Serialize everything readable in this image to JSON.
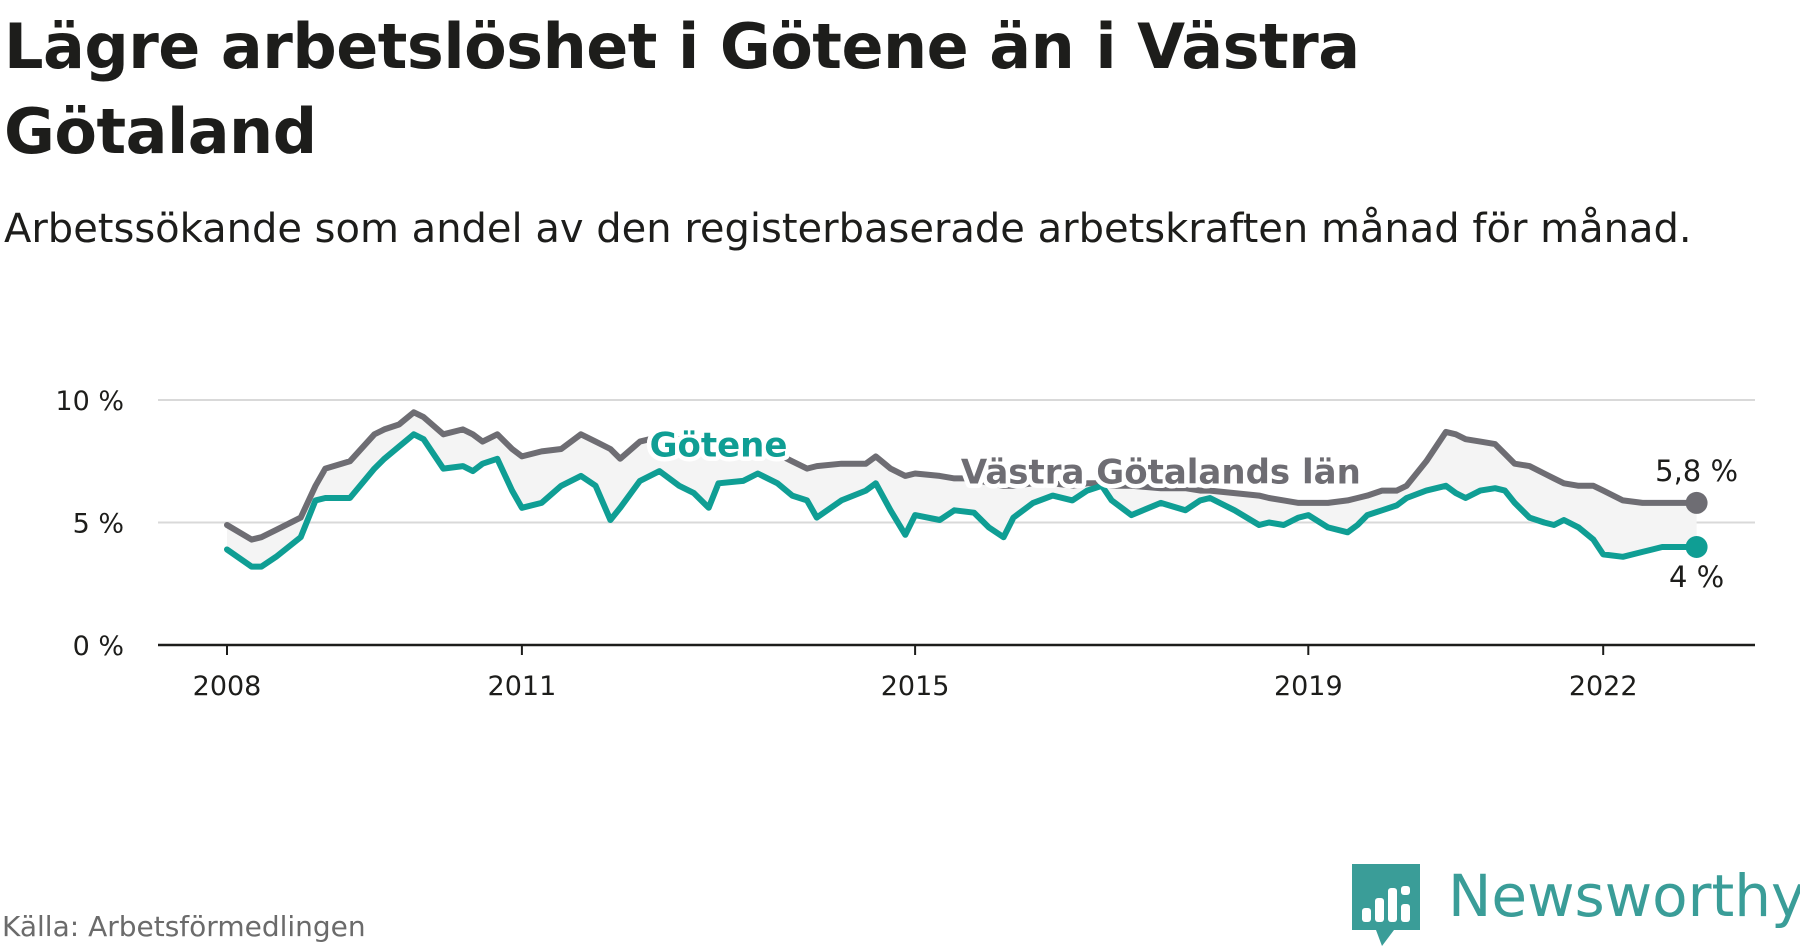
{
  "title": "Lägre arbetslöshet i Götene än i Västra Götaland",
  "subtitle": "Arbetssökande som andel av den registerbaserade arbetskraften månad för månad.",
  "source": "Källa: Arbetsförmedlingen",
  "brand": "Newsworthy",
  "colors": {
    "gotene": "#0f9e94",
    "region": "#6e6d73",
    "band": "#ececec",
    "grid": "#d9d9d9",
    "brand": "#3a9d98"
  },
  "chart_data": {
    "type": "line",
    "title": "Lägre arbetslöshet i Götene än i Västra Götaland",
    "xlabel": "",
    "ylabel": "",
    "xlim": [
      2008.0,
      2023.2
    ],
    "ylim": [
      0,
      10
    ],
    "y_ticks": [
      0,
      5,
      10
    ],
    "y_tick_labels": [
      "0 %",
      "5 %",
      "10 %"
    ],
    "x_ticks": [
      2008,
      2011,
      2015,
      2019,
      2022
    ],
    "x_tick_labels": [
      "2008",
      "2011",
      "2015",
      "2019",
      "2022"
    ],
    "grid": true,
    "legend": "inline",
    "series": [
      {
        "name": "Götene",
        "label": "Götene",
        "color_key": "gotene",
        "end_label": "4 %",
        "x": [
          2008.0,
          2008.25,
          2008.35,
          2008.5,
          2008.75,
          2008.9,
          2009.0,
          2009.25,
          2009.5,
          2009.6,
          2009.75,
          2009.9,
          2010.0,
          2010.2,
          2010.4,
          2010.5,
          2010.6,
          2010.75,
          2010.9,
          2011.0,
          2011.2,
          2011.4,
          2011.6,
          2011.75,
          2011.9,
          2012.0,
          2012.2,
          2012.4,
          2012.6,
          2012.75,
          2012.9,
          2013.0,
          2013.25,
          2013.4,
          2013.6,
          2013.75,
          2013.9,
          2014.0,
          2014.25,
          2014.5,
          2014.6,
          2014.75,
          2014.9,
          2015.0,
          2015.25,
          2015.4,
          2015.6,
          2015.75,
          2015.9,
          2016.0,
          2016.2,
          2016.4,
          2016.6,
          2016.75,
          2016.9,
          2017.0,
          2017.2,
          2017.5,
          2017.75,
          2017.9,
          2018.0,
          2018.25,
          2018.5,
          2018.6,
          2018.75,
          2018.9,
          2019.0,
          2019.2,
          2019.4,
          2019.5,
          2019.6,
          2019.75,
          2019.9,
          2020.0,
          2020.2,
          2020.4,
          2020.5,
          2020.6,
          2020.75,
          2020.9,
          2021.0,
          2021.1,
          2021.25,
          2021.4,
          2021.5,
          2021.6,
          2021.75,
          2021.9,
          2022.0,
          2022.2,
          2022.4,
          2022.6,
          2022.7,
          2022.8,
          2022.95
        ],
        "values": [
          3.9,
          3.2,
          3.2,
          3.6,
          4.4,
          5.9,
          6.0,
          6.0,
          7.2,
          7.6,
          8.1,
          8.6,
          8.4,
          7.2,
          7.3,
          7.1,
          7.4,
          7.6,
          6.3,
          5.6,
          5.8,
          6.5,
          6.9,
          6.5,
          5.1,
          5.6,
          6.7,
          7.1,
          6.5,
          6.2,
          5.6,
          6.6,
          6.7,
          7.0,
          6.6,
          6.1,
          5.9,
          5.2,
          5.9,
          6.3,
          6.6,
          5.5,
          4.5,
          5.3,
          5.1,
          5.5,
          5.4,
          4.8,
          4.4,
          5.2,
          5.8,
          6.1,
          5.9,
          6.3,
          6.5,
          5.9,
          5.3,
          5.8,
          5.5,
          5.9,
          6.0,
          5.5,
          4.9,
          5.0,
          4.9,
          5.2,
          5.3,
          4.8,
          4.6,
          4.9,
          5.3,
          5.5,
          5.7,
          6.0,
          6.3,
          6.5,
          6.2,
          6.0,
          6.3,
          6.4,
          6.3,
          5.8,
          5.2,
          5.0,
          4.9,
          5.1,
          4.8,
          4.3,
          3.7,
          3.6,
          3.8,
          4.0,
          4.0,
          4.0,
          4.0
        ]
      },
      {
        "name": "Västra Götalands län",
        "label": "Västra Götalands län",
        "color_key": "region",
        "end_label": "5,8 %",
        "x": [
          2008.0,
          2008.25,
          2008.35,
          2008.5,
          2008.75,
          2008.9,
          2009.0,
          2009.25,
          2009.5,
          2009.6,
          2009.75,
          2009.9,
          2010.0,
          2010.2,
          2010.4,
          2010.5,
          2010.6,
          2010.75,
          2010.9,
          2011.0,
          2011.2,
          2011.4,
          2011.6,
          2011.75,
          2011.9,
          2012.0,
          2012.2,
          2012.4,
          2012.6,
          2012.75,
          2012.9,
          2013.0,
          2013.25,
          2013.4,
          2013.6,
          2013.75,
          2013.9,
          2014.0,
          2014.25,
          2014.5,
          2014.6,
          2014.75,
          2014.9,
          2015.0,
          2015.25,
          2015.4,
          2015.6,
          2015.75,
          2015.9,
          2016.0,
          2016.2,
          2016.4,
          2016.6,
          2016.75,
          2016.9,
          2017.0,
          2017.2,
          2017.5,
          2017.75,
          2017.9,
          2018.0,
          2018.25,
          2018.5,
          2018.6,
          2018.75,
          2018.9,
          2019.0,
          2019.2,
          2019.4,
          2019.5,
          2019.6,
          2019.75,
          2019.9,
          2020.0,
          2020.2,
          2020.4,
          2020.5,
          2020.6,
          2020.75,
          2020.9,
          2021.0,
          2021.1,
          2021.25,
          2021.4,
          2021.5,
          2021.6,
          2021.75,
          2021.9,
          2022.0,
          2022.2,
          2022.4,
          2022.6,
          2022.7,
          2022.8,
          2022.95
        ],
        "values": [
          4.9,
          4.3,
          4.4,
          4.7,
          5.2,
          6.5,
          7.2,
          7.5,
          8.6,
          8.8,
          9.0,
          9.5,
          9.3,
          8.6,
          8.8,
          8.6,
          8.3,
          8.6,
          8.0,
          7.7,
          7.9,
          8.0,
          8.6,
          8.3,
          8.0,
          7.6,
          8.3,
          8.5,
          8.4,
          8.0,
          8.2,
          8.2,
          8.2,
          8.4,
          7.8,
          7.5,
          7.2,
          7.3,
          7.4,
          7.4,
          7.7,
          7.2,
          6.9,
          7.0,
          6.9,
          6.8,
          6.8,
          6.6,
          6.5,
          6.5,
          6.6,
          6.6,
          6.5,
          6.6,
          6.6,
          6.5,
          6.5,
          6.4,
          6.4,
          6.3,
          6.3,
          6.2,
          6.1,
          6.0,
          5.9,
          5.8,
          5.8,
          5.8,
          5.9,
          6.0,
          6.1,
          6.3,
          6.3,
          6.5,
          7.5,
          8.7,
          8.6,
          8.4,
          8.3,
          8.2,
          7.8,
          7.4,
          7.3,
          7.0,
          6.8,
          6.6,
          6.5,
          6.5,
          6.3,
          5.9,
          5.8,
          5.8,
          5.8,
          5.8,
          5.8
        ]
      }
    ]
  }
}
